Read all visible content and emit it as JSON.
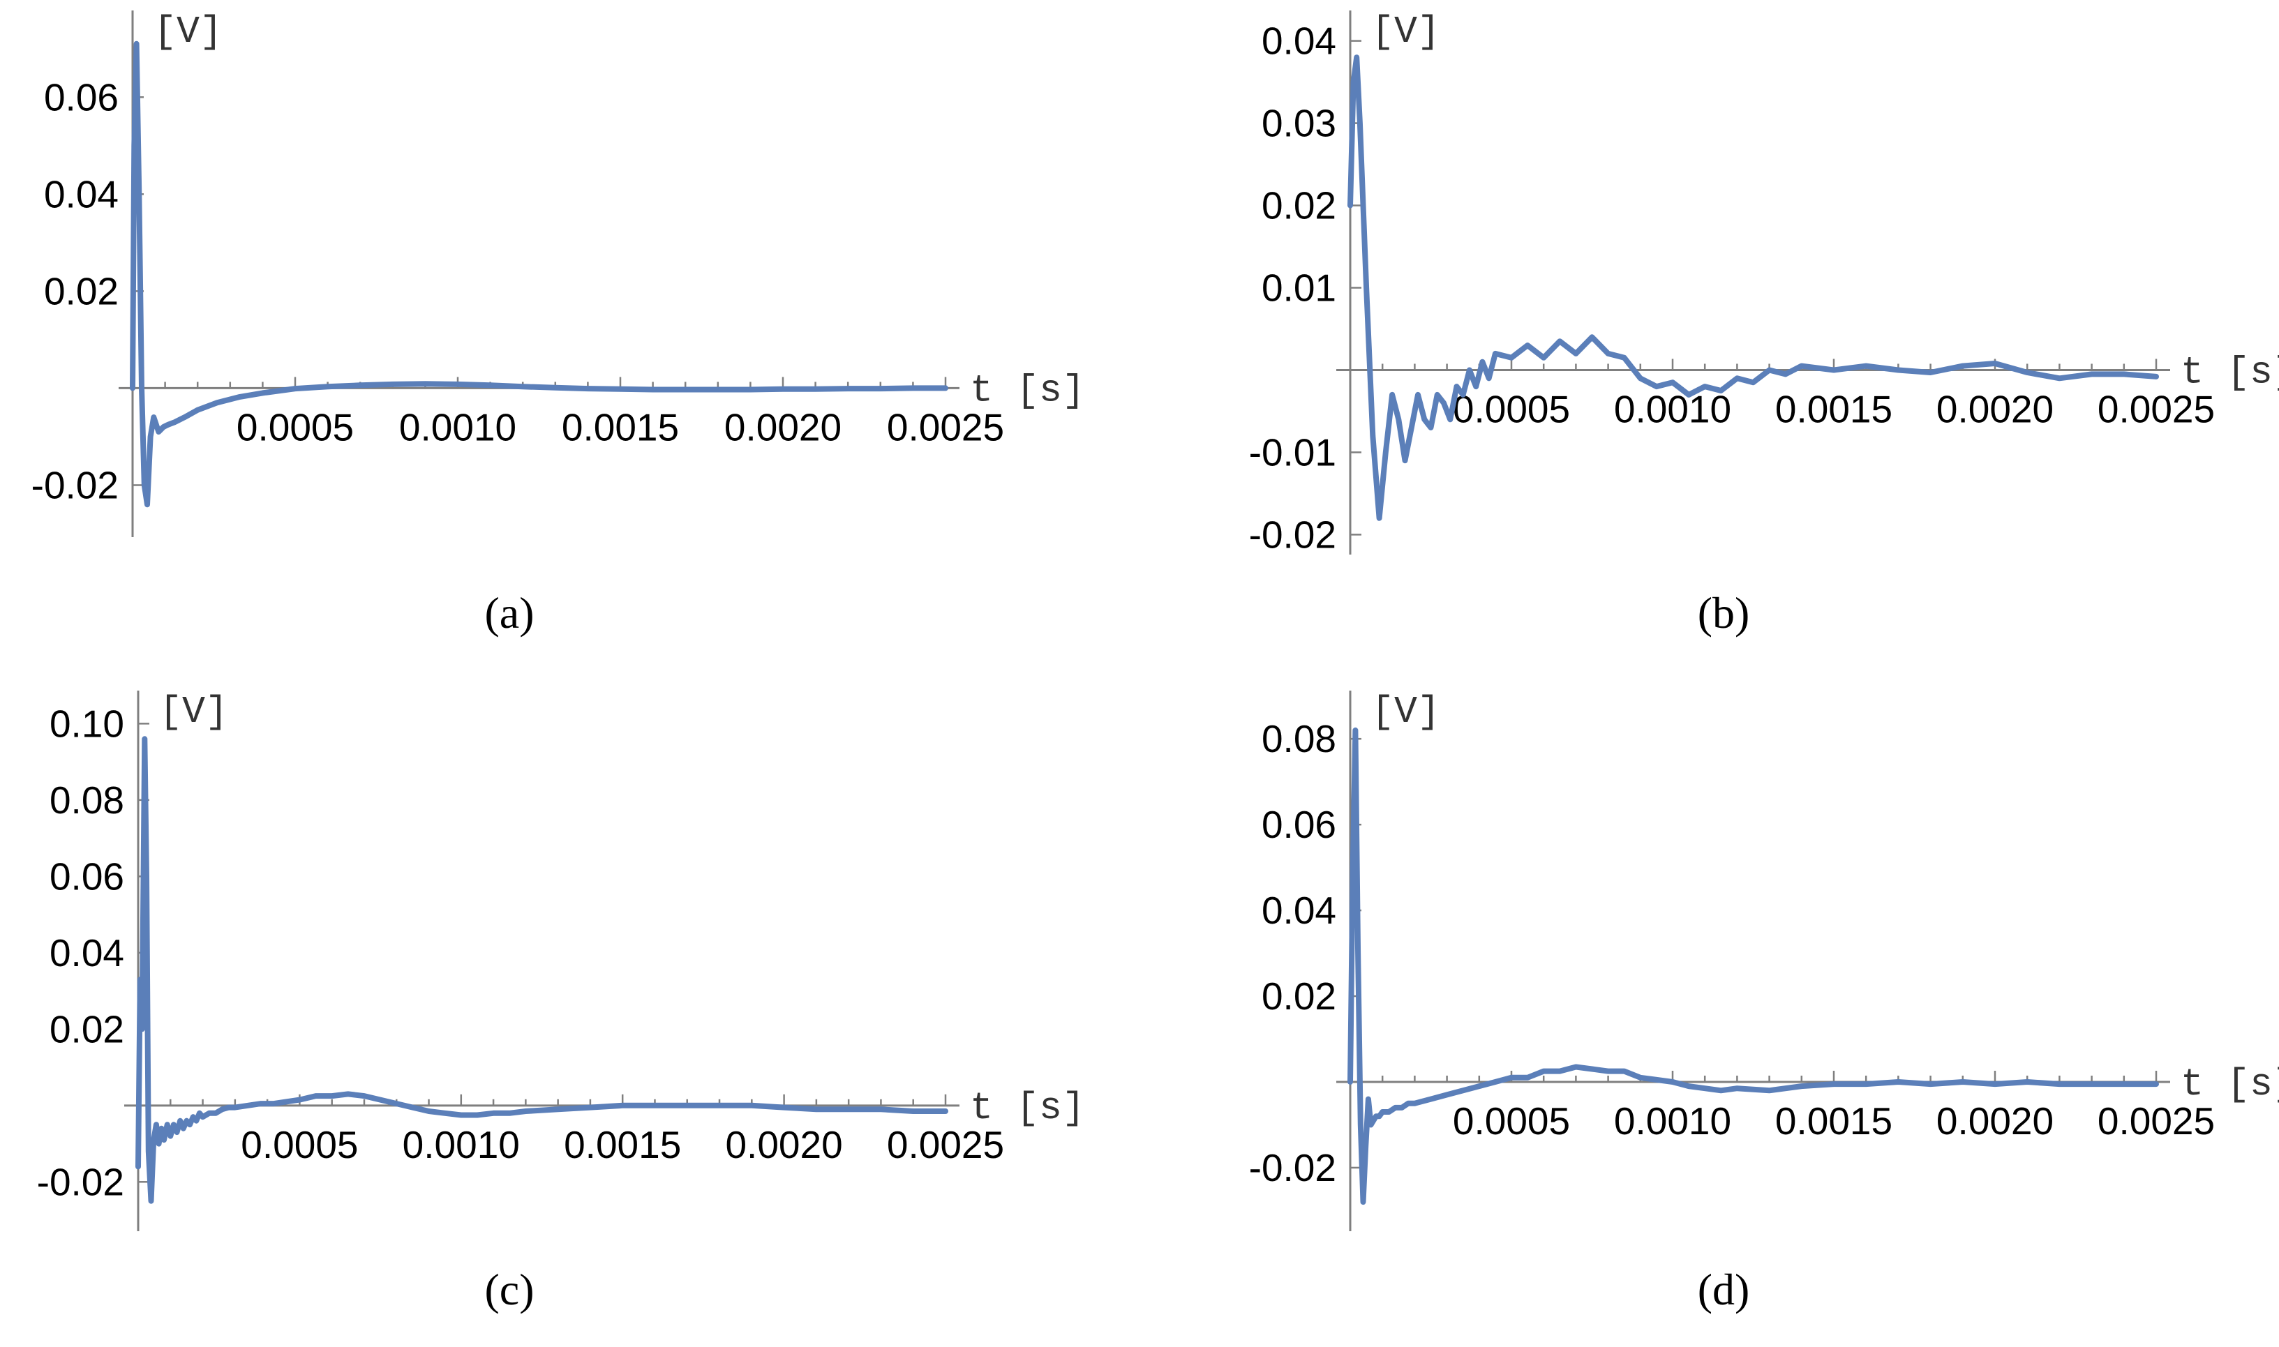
{
  "colors": {
    "series": "#5b7fb9",
    "axis": "#7f7f7f"
  },
  "chart_data": [
    {
      "type": "line",
      "caption": "(a)",
      "xlabel": "t [s]",
      "ylabel": "[V]",
      "xlim": [
        0,
        0.0025
      ],
      "ylim": [
        -0.03,
        0.075
      ],
      "xticks": [
        0.0005,
        0.001,
        0.0015,
        0.002,
        0.0025
      ],
      "xtick_labels": [
        "0.0005",
        "0.0010",
        "0.0015",
        "0.0020",
        "0.0025"
      ],
      "yticks": [
        -0.02,
        0.02,
        0.04,
        0.06
      ],
      "ytick_labels": [
        "-0.02",
        "0.02",
        "0.04",
        "0.06"
      ],
      "series": [
        {
          "x": [
            0,
            5e-06,
            1.2e-05,
            2e-05,
            2.8e-05,
            3.6e-05,
            4.5e-05,
            5.5e-05,
            6.5e-05,
            8e-05,
            9.5e-05,
            0.00011,
            0.00013,
            0.00016,
            0.0002,
            0.00026,
            0.00033,
            0.0004,
            0.0005,
            0.0006,
            0.0007,
            0.0008,
            0.0009,
            0.001,
            0.0011,
            0.0012,
            0.0013,
            0.0014,
            0.0015,
            0.0016,
            0.0017,
            0.0018,
            0.0019,
            0.002,
            0.0021,
            0.0022,
            0.0023,
            0.0024,
            0.0025
          ],
          "y": [
            0,
            0.05,
            0.071,
            0.04,
            0.0,
            -0.02,
            -0.024,
            -0.01,
            -0.006,
            -0.009,
            -0.008,
            -0.0075,
            -0.007,
            -0.006,
            -0.0045,
            -0.003,
            -0.0018,
            -0.001,
            -0.0001,
            0.0003,
            0.0006,
            0.0008,
            0.0009,
            0.0008,
            0.0006,
            0.0003,
            0.0001,
            -0.0001,
            -0.0002,
            -0.0003,
            -0.0003,
            -0.0003,
            -0.0003,
            -0.0002,
            -0.0002,
            -0.0001,
            -0.0001,
            0.0,
            0.0
          ]
        }
      ]
    },
    {
      "type": "line",
      "caption": "(b)",
      "xlabel": "t [s]",
      "ylabel": "[V]",
      "xlim": [
        0,
        0.0025
      ],
      "ylim": [
        -0.022,
        0.042
      ],
      "xticks": [
        0.0005,
        0.001,
        0.0015,
        0.002,
        0.0025
      ],
      "xtick_labels": [
        "0.0005",
        "0.0010",
        "0.0015",
        "0.0020",
        "0.0025"
      ],
      "yticks": [
        -0.02,
        -0.01,
        0.01,
        0.02,
        0.03,
        0.04
      ],
      "ytick_labels": [
        "-0.02",
        "-0.01",
        "0.01",
        "0.02",
        "0.03",
        "0.04"
      ],
      "series": [
        {
          "x": [
            0,
            1e-05,
            2e-05,
            3e-05,
            5e-05,
            7e-05,
            9e-05,
            0.00011,
            0.00013,
            0.00015,
            0.00017,
            0.00019,
            0.00021,
            0.00023,
            0.00025,
            0.00027,
            0.00029,
            0.00031,
            0.00033,
            0.00035,
            0.00037,
            0.00039,
            0.00041,
            0.00043,
            0.00045,
            0.0005,
            0.00055,
            0.0006,
            0.00065,
            0.0007,
            0.00075,
            0.0008,
            0.00085,
            0.0009,
            0.00095,
            0.001,
            0.00105,
            0.0011,
            0.00115,
            0.0012,
            0.00125,
            0.0013,
            0.00135,
            0.0014,
            0.0015,
            0.0016,
            0.0017,
            0.0018,
            0.0019,
            0.002,
            0.0021,
            0.0022,
            0.0023,
            0.0024,
            0.0025
          ],
          "y": [
            0.02,
            0.035,
            0.038,
            0.03,
            0.01,
            -0.008,
            -0.018,
            -0.01,
            -0.003,
            -0.006,
            -0.011,
            -0.007,
            -0.003,
            -0.006,
            -0.007,
            -0.003,
            -0.004,
            -0.006,
            -0.002,
            -0.003,
            0.0,
            -0.002,
            0.001,
            -0.001,
            0.002,
            0.0015,
            0.003,
            0.0015,
            0.0035,
            0.002,
            0.004,
            0.002,
            0.0015,
            -0.001,
            -0.002,
            -0.0015,
            -0.003,
            -0.002,
            -0.0025,
            -0.001,
            -0.0015,
            0.0,
            -0.0005,
            0.0005,
            0.0,
            0.0005,
            0.0,
            -0.0003,
            0.0005,
            0.0008,
            -0.0003,
            -0.001,
            -0.0005,
            -0.0005,
            -0.0008
          ]
        }
      ]
    },
    {
      "type": "line",
      "caption": "(c)",
      "xlabel": "t [s]",
      "ylabel": "[V]",
      "xlim": [
        0,
        0.0025
      ],
      "ylim": [
        -0.032,
        0.105
      ],
      "xticks": [
        0.0005,
        0.001,
        0.0015,
        0.002,
        0.0025
      ],
      "xtick_labels": [
        "0.0005",
        "0.0010",
        "0.0015",
        "0.0020",
        "0.0025"
      ],
      "yticks": [
        -0.02,
        0.02,
        0.04,
        0.06,
        0.08,
        0.1
      ],
      "ytick_labels": [
        "-0.02",
        "0.02",
        "0.04",
        "0.06",
        "0.08",
        "0.10"
      ],
      "series": [
        {
          "x": [
            0,
            6e-06,
            1.2e-05,
            2e-05,
            2.6e-05,
            3.2e-05,
            4e-05,
            4.8e-05,
            5.6e-05,
            6.4e-05,
            7.2e-05,
            8e-05,
            9e-05,
            0.0001,
            0.00011,
            0.00012,
            0.00013,
            0.00014,
            0.00015,
            0.00016,
            0.00017,
            0.00018,
            0.00019,
            0.0002,
            0.00022,
            0.00024,
            0.00026,
            0.00028,
            0.0003,
            0.00034,
            0.00038,
            0.00042,
            0.00046,
            0.0005,
            0.00055,
            0.0006,
            0.00065,
            0.0007,
            0.00075,
            0.0008,
            0.00085,
            0.0009,
            0.00095,
            0.001,
            0.00105,
            0.0011,
            0.00115,
            0.0012,
            0.0013,
            0.0014,
            0.0015,
            0.0016,
            0.0017,
            0.0018,
            0.0019,
            0.002,
            0.0021,
            0.0022,
            0.0023,
            0.0024,
            0.0025
          ],
          "y": [
            -0.016,
            0.033,
            0.02,
            0.096,
            0.06,
            -0.012,
            -0.025,
            -0.009,
            -0.005,
            -0.01,
            -0.006,
            -0.009,
            -0.005,
            -0.008,
            -0.005,
            -0.007,
            -0.004,
            -0.006,
            -0.004,
            -0.005,
            -0.003,
            -0.004,
            -0.002,
            -0.003,
            -0.002,
            -0.002,
            -0.001,
            -0.0005,
            -0.0005,
            0.0,
            0.0005,
            0.0005,
            0.001,
            0.0015,
            0.0025,
            0.0025,
            0.003,
            0.0025,
            0.0015,
            0.0005,
            -0.0005,
            -0.0015,
            -0.002,
            -0.0025,
            -0.0025,
            -0.002,
            -0.002,
            -0.0015,
            -0.001,
            -0.0005,
            0.0,
            0.0,
            0.0,
            0.0,
            0.0,
            -0.0005,
            -0.001,
            -0.001,
            -0.001,
            -0.0015,
            -0.0015
          ]
        }
      ]
    },
    {
      "type": "line",
      "caption": "(d)",
      "xlabel": "t [s]",
      "ylabel": "[V]",
      "xlim": [
        0,
        0.0025
      ],
      "ylim": [
        -0.034,
        0.088
      ],
      "xticks": [
        0.0005,
        0.001,
        0.0015,
        0.002,
        0.0025
      ],
      "xtick_labels": [
        "0.0005",
        "0.0010",
        "0.0015",
        "0.0020",
        "0.0025"
      ],
      "yticks": [
        -0.02,
        0.02,
        0.04,
        0.06,
        0.08
      ],
      "ytick_labels": [
        "-0.02",
        "0.02",
        "0.04",
        "0.06",
        "0.08"
      ],
      "series": [
        {
          "x": [
            0,
            8e-06,
            1.6e-05,
            2.4e-05,
            3.2e-05,
            4e-05,
            4.8e-05,
            5.6e-05,
            6.4e-05,
            7.2e-05,
            8e-05,
            9e-05,
            0.0001,
            0.00012,
            0.00014,
            0.00016,
            0.00018,
            0.0002,
            0.00025,
            0.0003,
            0.00035,
            0.0004,
            0.00045,
            0.0005,
            0.00055,
            0.0006,
            0.00065,
            0.0007,
            0.00075,
            0.0008,
            0.00085,
            0.0009,
            0.00095,
            0.001,
            0.00105,
            0.0011,
            0.00115,
            0.0012,
            0.0013,
            0.0014,
            0.0015,
            0.0016,
            0.0017,
            0.0018,
            0.0019,
            0.002,
            0.0021,
            0.0022,
            0.0023,
            0.0024,
            0.0025
          ],
          "y": [
            0.0,
            0.05,
            0.082,
            0.03,
            -0.01,
            -0.028,
            -0.015,
            -0.004,
            -0.01,
            -0.009,
            -0.008,
            -0.008,
            -0.007,
            -0.007,
            -0.006,
            -0.006,
            -0.005,
            -0.005,
            -0.004,
            -0.003,
            -0.002,
            -0.001,
            0.0,
            0.001,
            0.001,
            0.0025,
            0.0025,
            0.0035,
            0.003,
            0.0025,
            0.0025,
            0.001,
            0.0005,
            0.0,
            -0.001,
            -0.0015,
            -0.002,
            -0.0015,
            -0.002,
            -0.001,
            -0.0005,
            -0.0005,
            0.0,
            -0.0005,
            0.0,
            -0.0005,
            0.0,
            -0.0005,
            -0.0005,
            -0.0005,
            -0.0005
          ]
        }
      ]
    }
  ]
}
